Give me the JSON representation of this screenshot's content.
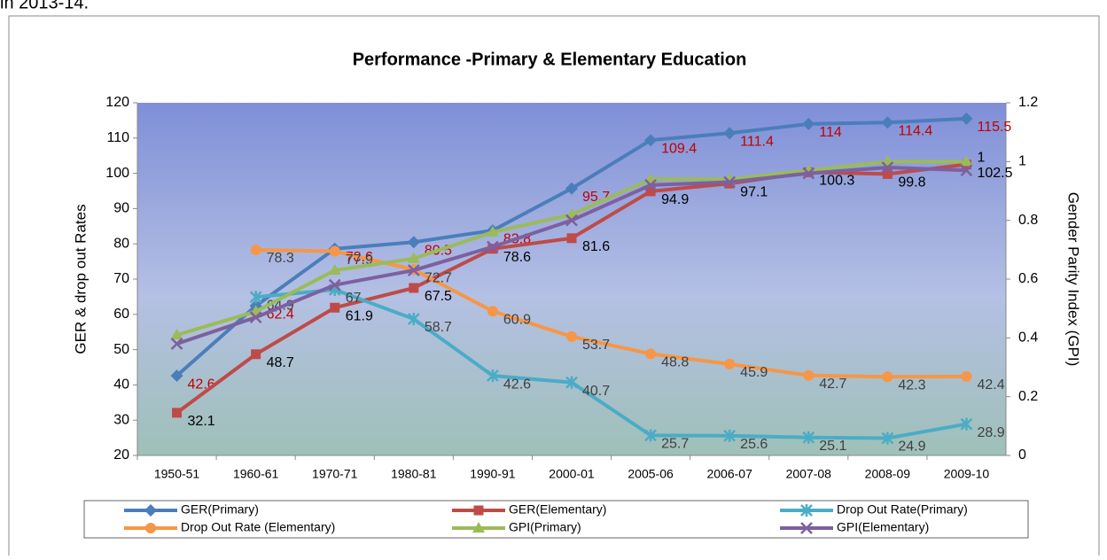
{
  "page_caption": "in 2013-14.",
  "chart_data": {
    "type": "line",
    "title": "Performance  -Primary & Elementary Education",
    "y_label": "GER & drop out Rates",
    "y2_label": "Gender Parity Index (GPI)",
    "categories": [
      "1950-51",
      "1960-61",
      "1970-71",
      "1980-81",
      "1990-91",
      "2000-01",
      "2005-06",
      "2006-07",
      "2007-08",
      "2008-09",
      "2009-10"
    ],
    "ylim": [
      20,
      120
    ],
    "yticks": [
      20,
      30,
      40,
      50,
      60,
      70,
      80,
      90,
      100,
      110,
      120
    ],
    "y2lim": [
      0,
      1.2
    ],
    "y2ticks": [
      0,
      0.2,
      0.4,
      0.6,
      0.8,
      1,
      1.2
    ],
    "legend": "bottom",
    "series": [
      {
        "name": "GER(Primary)",
        "color": "#4a7ebb",
        "marker": "diamond",
        "label_color": "#c00000",
        "values": [
          42.6,
          62.4,
          78.6,
          80.5,
          83.8,
          95.7,
          109.4,
          111.4,
          114,
          114.4,
          115.5
        ]
      },
      {
        "name": "GER(Elementary)",
        "color": "#be4b48",
        "marker": "square",
        "label_color": "#000000",
        "values": [
          32.1,
          48.7,
          61.9,
          67.5,
          78.6,
          81.6,
          94.9,
          97.1,
          100.3,
          99.8,
          102.5
        ]
      },
      {
        "name": "Drop Out Rate(Primary)",
        "color": "#4bacc6",
        "marker": "star",
        "label_color": "#404040",
        "values": [
          null,
          64.9,
          67,
          58.7,
          42.6,
          40.7,
          25.7,
          25.6,
          25.1,
          24.9,
          28.9
        ]
      },
      {
        "name": "Drop Out Rate (Elementary)",
        "color": "#f79646",
        "marker": "circle",
        "label_color": "#404040",
        "values": [
          null,
          78.3,
          77.9,
          72.7,
          60.9,
          53.7,
          48.8,
          45.9,
          42.7,
          42.3,
          42.4
        ]
      },
      {
        "name": "GPI(Primary)",
        "color": "#9bbb59",
        "marker": "triangle",
        "axis": "y2",
        "label_color": "#000000",
        "values": [
          0.41,
          0.49,
          0.63,
          0.67,
          0.76,
          0.82,
          0.94,
          0.94,
          0.97,
          1.0,
          1.0
        ],
        "value_labels": [
          null,
          null,
          null,
          null,
          null,
          null,
          null,
          null,
          null,
          null,
          "1"
        ]
      },
      {
        "name": "GPI(Elementary)",
        "color": "#7d60a0",
        "marker": "x",
        "axis": "y2",
        "values": [
          0.38,
          0.47,
          0.58,
          0.63,
          0.71,
          0.8,
          0.92,
          0.93,
          0.96,
          0.98,
          0.97
        ]
      }
    ]
  }
}
